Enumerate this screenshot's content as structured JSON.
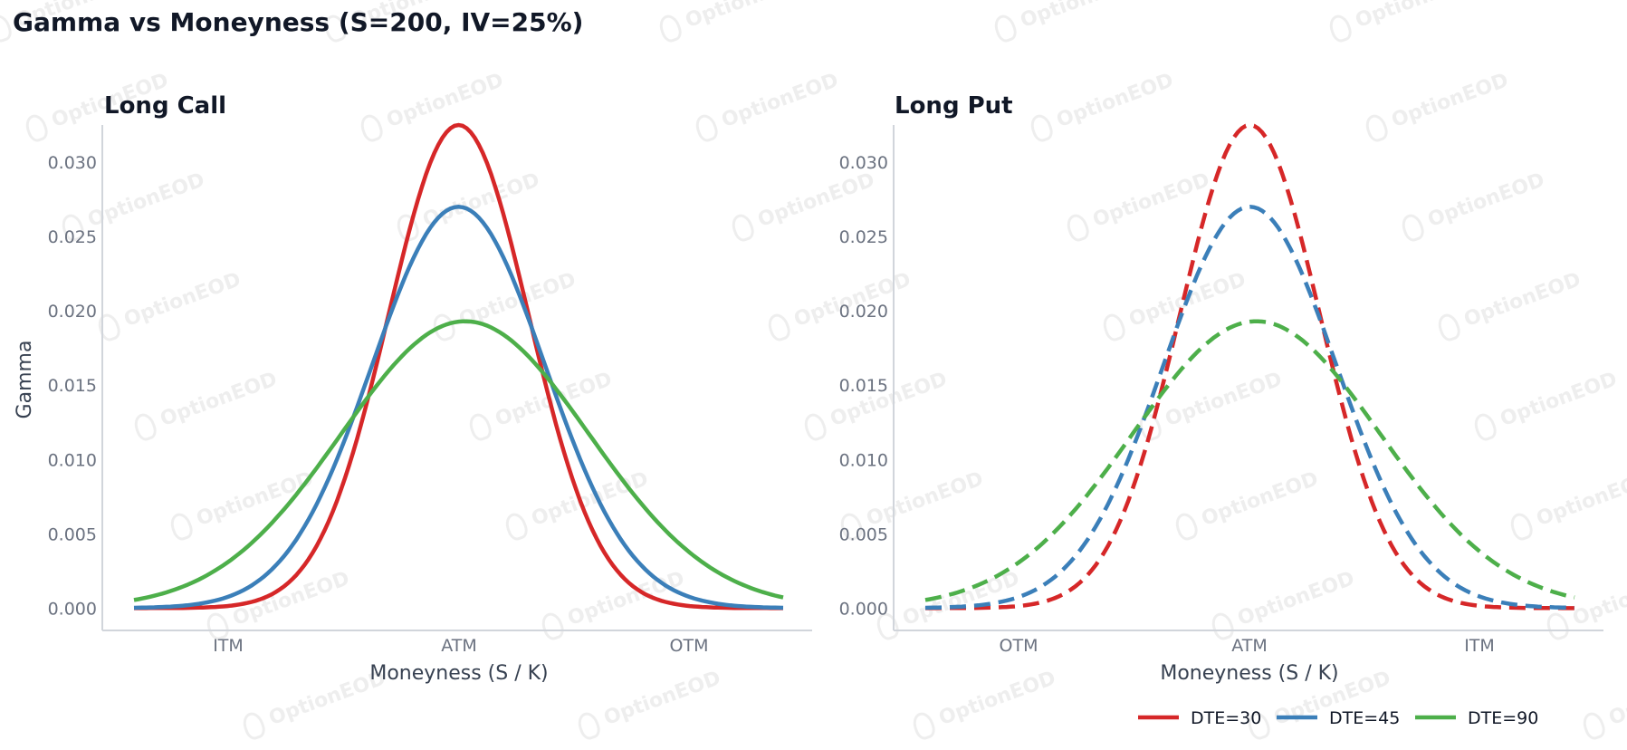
{
  "title": "Gamma vs Moneyness (S=200, IV=25%)",
  "watermark": {
    "text": "OptionEOD"
  },
  "colors": {
    "dte30": "#d62728",
    "dte45": "#3b7fb9",
    "dte90": "#4daf4a",
    "axis": "#d1d5db",
    "tick_text": "#6b7280"
  },
  "chart_data": [
    {
      "type": "line",
      "title": "Long Call",
      "xlabel": "Moneyness (S / K)",
      "ylabel": "Gamma",
      "x_tick_labels": [
        "ITM",
        "ATM",
        "OTM"
      ],
      "y_ticks": [
        0.0,
        0.005,
        0.01,
        0.015,
        0.02,
        0.025,
        0.03
      ],
      "y_tick_labels": [
        "0.000",
        "0.005",
        "0.010",
        "0.015",
        "0.020",
        "0.025",
        "0.030"
      ],
      "ylim": [
        -0.0015,
        0.0325
      ],
      "line_style": "solid",
      "grid": false,
      "series": [
        {
          "name": "DTE=30",
          "color": "#d62728",
          "peak_x": "ATM",
          "peak_gamma": 0.0325,
          "x_range": [
            "ITM",
            "OTM"
          ]
        },
        {
          "name": "DTE=45",
          "color": "#3b7fb9",
          "peak_x": "ATM",
          "peak_gamma": 0.027,
          "x_range": [
            "ITM",
            "OTM"
          ]
        },
        {
          "name": "DTE=90",
          "color": "#4daf4a",
          "peak_x": "ATM",
          "peak_gamma": 0.0193,
          "x_range": [
            "ITM",
            "OTM"
          ]
        }
      ]
    },
    {
      "type": "line",
      "title": "Long Put",
      "xlabel": "Moneyness (S / K)",
      "ylabel": "",
      "x_tick_labels": [
        "OTM",
        "ATM",
        "ITM"
      ],
      "y_ticks": [
        0.0,
        0.005,
        0.01,
        0.015,
        0.02,
        0.025,
        0.03
      ],
      "y_tick_labels": [
        "0.000",
        "0.005",
        "0.010",
        "0.015",
        "0.020",
        "0.025",
        "0.030"
      ],
      "ylim": [
        -0.0015,
        0.0325
      ],
      "line_style": "dashed",
      "grid": false,
      "series": [
        {
          "name": "DTE=30",
          "color": "#d62728",
          "peak_x": "ATM",
          "peak_gamma": 0.0325,
          "x_range": [
            "OTM",
            "ITM"
          ]
        },
        {
          "name": "DTE=45",
          "color": "#3b7fb9",
          "peak_x": "ATM",
          "peak_gamma": 0.027,
          "x_range": [
            "OTM",
            "ITM"
          ]
        },
        {
          "name": "DTE=90",
          "color": "#4daf4a",
          "peak_x": "ATM",
          "peak_gamma": 0.0193,
          "x_range": [
            "OTM",
            "ITM"
          ]
        }
      ]
    }
  ],
  "legend": {
    "placement": "bottom-right",
    "items": [
      {
        "label": "DTE=30",
        "color": "#d62728"
      },
      {
        "label": "DTE=45",
        "color": "#3b7fb9"
      },
      {
        "label": "DTE=90",
        "color": "#4daf4a"
      }
    ]
  }
}
